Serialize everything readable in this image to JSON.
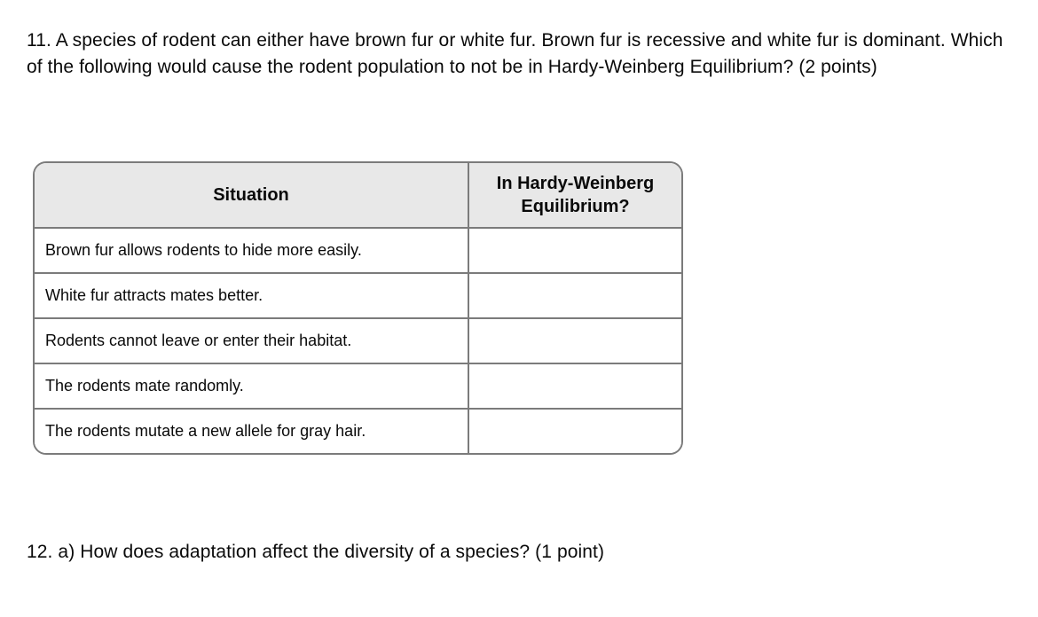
{
  "page": {
    "background": "#ffffff",
    "text_color": "#0a0a0a"
  },
  "question_11": {
    "text": "11. A species of rodent can either have brown fur or white fur. Brown fur is recessive and white fur is dominant. Which of the following would cause the rodent population to not be in Hardy-Weinberg Equilibrium? (2 points)"
  },
  "table": {
    "border_color": "#7b7b7b",
    "header_bg": "#e8e8e8",
    "headers": [
      "Situation",
      "In Hardy-Weinberg Equilibrium?"
    ],
    "rows": [
      {
        "situation": "Brown fur allows rodents to hide more easily.",
        "answer": ""
      },
      {
        "situation": "White fur attracts mates better.",
        "answer": ""
      },
      {
        "situation": "Rodents cannot leave or enter their habitat.",
        "answer": ""
      },
      {
        "situation": "The rodents mate randomly.",
        "answer": ""
      },
      {
        "situation": "The rodents mutate a new allele for gray hair.",
        "answer": ""
      }
    ]
  },
  "question_12": {
    "text": "12. a) How does adaptation affect the diversity of a species? (1 point)"
  }
}
